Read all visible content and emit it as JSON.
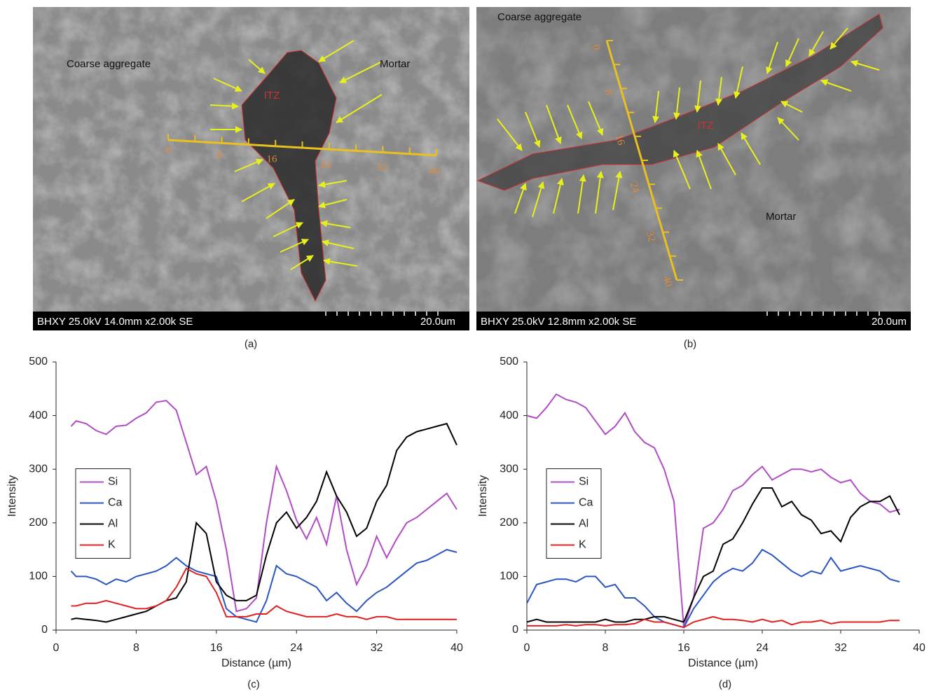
{
  "images": [
    {
      "caption": "(a)",
      "labels": [
        "Coarse aggregate",
        "Mortar",
        "ITZ"
      ],
      "scale_labels": [
        0,
        8,
        16,
        24,
        32,
        40
      ],
      "info": "BHXY 25.0kV 14.0mm x2.00k SE",
      "scale_bar": "20.0um"
    },
    {
      "caption": "(b)",
      "labels": [
        "Coarse aggregate",
        "Mortar",
        "ITZ"
      ],
      "scale_labels": [
        0,
        8,
        16,
        24,
        32,
        40
      ],
      "info": "BHXY 25.0kV 12.8mm x2.00k SE",
      "scale_bar": "20.0um"
    }
  ],
  "chart_data": [
    {
      "type": "line",
      "caption": "(c)",
      "x_label": "Distance (µm)",
      "y_label": "Intensity",
      "legend": "center left",
      "xlim": [
        0,
        40
      ],
      "xticks": [
        0,
        8,
        16,
        24,
        32,
        40
      ],
      "ylim": [
        0,
        500
      ],
      "yticks": [
        0,
        100,
        200,
        300,
        400,
        500
      ],
      "x": [
        1.5,
        2,
        3,
        4,
        5,
        6,
        7,
        8,
        9,
        10,
        11,
        12,
        13,
        14,
        15,
        16,
        17,
        18,
        19,
        20,
        21,
        22,
        23,
        24,
        25,
        26,
        27,
        28,
        29,
        30,
        31,
        32,
        33,
        34,
        35,
        36,
        37,
        38,
        39,
        40
      ],
      "series": [
        {
          "name": "Si",
          "color": "#b04cc4",
          "values": [
            380,
            390,
            385,
            372,
            365,
            380,
            382,
            395,
            405,
            425,
            428,
            410,
            350,
            290,
            305,
            240,
            150,
            35,
            40,
            60,
            200,
            305,
            260,
            205,
            170,
            210,
            160,
            250,
            150,
            85,
            120,
            175,
            135,
            170,
            200,
            210,
            225,
            240,
            255,
            225
          ]
        },
        {
          "name": "Ca",
          "color": "#2a55c0",
          "values": [
            110,
            100,
            100,
            95,
            85,
            95,
            90,
            100,
            105,
            110,
            120,
            135,
            120,
            110,
            105,
            100,
            40,
            25,
            20,
            15,
            55,
            120,
            105,
            100,
            90,
            80,
            55,
            70,
            50,
            35,
            55,
            70,
            80,
            95,
            110,
            125,
            130,
            140,
            150,
            145
          ]
        },
        {
          "name": "Al",
          "color": "#000000",
          "values": [
            20,
            22,
            20,
            18,
            15,
            20,
            25,
            30,
            35,
            45,
            55,
            60,
            90,
            200,
            180,
            90,
            65,
            55,
            55,
            65,
            140,
            200,
            220,
            190,
            210,
            240,
            295,
            250,
            220,
            175,
            190,
            240,
            270,
            335,
            360,
            370,
            375,
            380,
            385,
            345
          ]
        },
        {
          "name": "K",
          "color": "#e02020",
          "values": [
            45,
            45,
            50,
            50,
            55,
            50,
            45,
            40,
            40,
            45,
            55,
            80,
            115,
            105,
            100,
            70,
            25,
            25,
            25,
            30,
            30,
            45,
            35,
            30,
            25,
            25,
            25,
            30,
            25,
            25,
            20,
            25,
            25,
            20,
            20,
            20,
            20,
            20,
            20,
            20
          ]
        }
      ]
    },
    {
      "type": "line",
      "caption": "(d)",
      "x_label": "Distance (µm)",
      "y_label": "Intensity",
      "legend": "center left",
      "xlim": [
        0,
        40
      ],
      "xticks": [
        0,
        8,
        16,
        24,
        32,
        40
      ],
      "ylim": [
        0,
        500
      ],
      "yticks": [
        0,
        100,
        200,
        300,
        400,
        500
      ],
      "x": [
        0,
        1,
        2,
        3,
        4,
        5,
        6,
        7,
        8,
        9,
        10,
        11,
        12,
        13,
        14,
        15,
        16,
        17,
        18,
        19,
        20,
        21,
        22,
        23,
        24,
        25,
        26,
        27,
        28,
        29,
        30,
        31,
        32,
        33,
        34,
        35,
        36,
        37,
        38
      ],
      "series": [
        {
          "name": "Si",
          "color": "#b04cc4",
          "values": [
            400,
            395,
            415,
            440,
            430,
            425,
            415,
            390,
            365,
            380,
            405,
            370,
            350,
            340,
            300,
            240,
            5,
            60,
            190,
            200,
            225,
            260,
            270,
            290,
            305,
            280,
            290,
            300,
            300,
            295,
            300,
            285,
            275,
            280,
            255,
            240,
            235,
            220,
            225
          ]
        },
        {
          "name": "Ca",
          "color": "#2a55c0",
          "values": [
            50,
            85,
            90,
            95,
            95,
            90,
            100,
            100,
            80,
            85,
            60,
            60,
            45,
            25,
            15,
            10,
            5,
            40,
            65,
            90,
            105,
            115,
            110,
            125,
            150,
            140,
            125,
            110,
            100,
            110,
            105,
            135,
            110,
            115,
            120,
            115,
            110,
            95,
            90
          ]
        },
        {
          "name": "Al",
          "color": "#000000",
          "values": [
            15,
            20,
            15,
            15,
            15,
            15,
            15,
            15,
            20,
            15,
            15,
            20,
            20,
            25,
            25,
            20,
            15,
            60,
            100,
            110,
            160,
            170,
            200,
            235,
            265,
            265,
            230,
            240,
            215,
            205,
            180,
            185,
            165,
            210,
            230,
            240,
            240,
            250,
            215
          ]
        },
        {
          "name": "K",
          "color": "#e02020",
          "values": [
            8,
            8,
            8,
            8,
            10,
            8,
            10,
            10,
            8,
            10,
            10,
            12,
            20,
            15,
            15,
            10,
            5,
            15,
            20,
            25,
            20,
            20,
            18,
            15,
            20,
            15,
            18,
            10,
            15,
            15,
            18,
            12,
            15,
            15,
            15,
            15,
            15,
            18,
            18
          ]
        }
      ]
    }
  ]
}
